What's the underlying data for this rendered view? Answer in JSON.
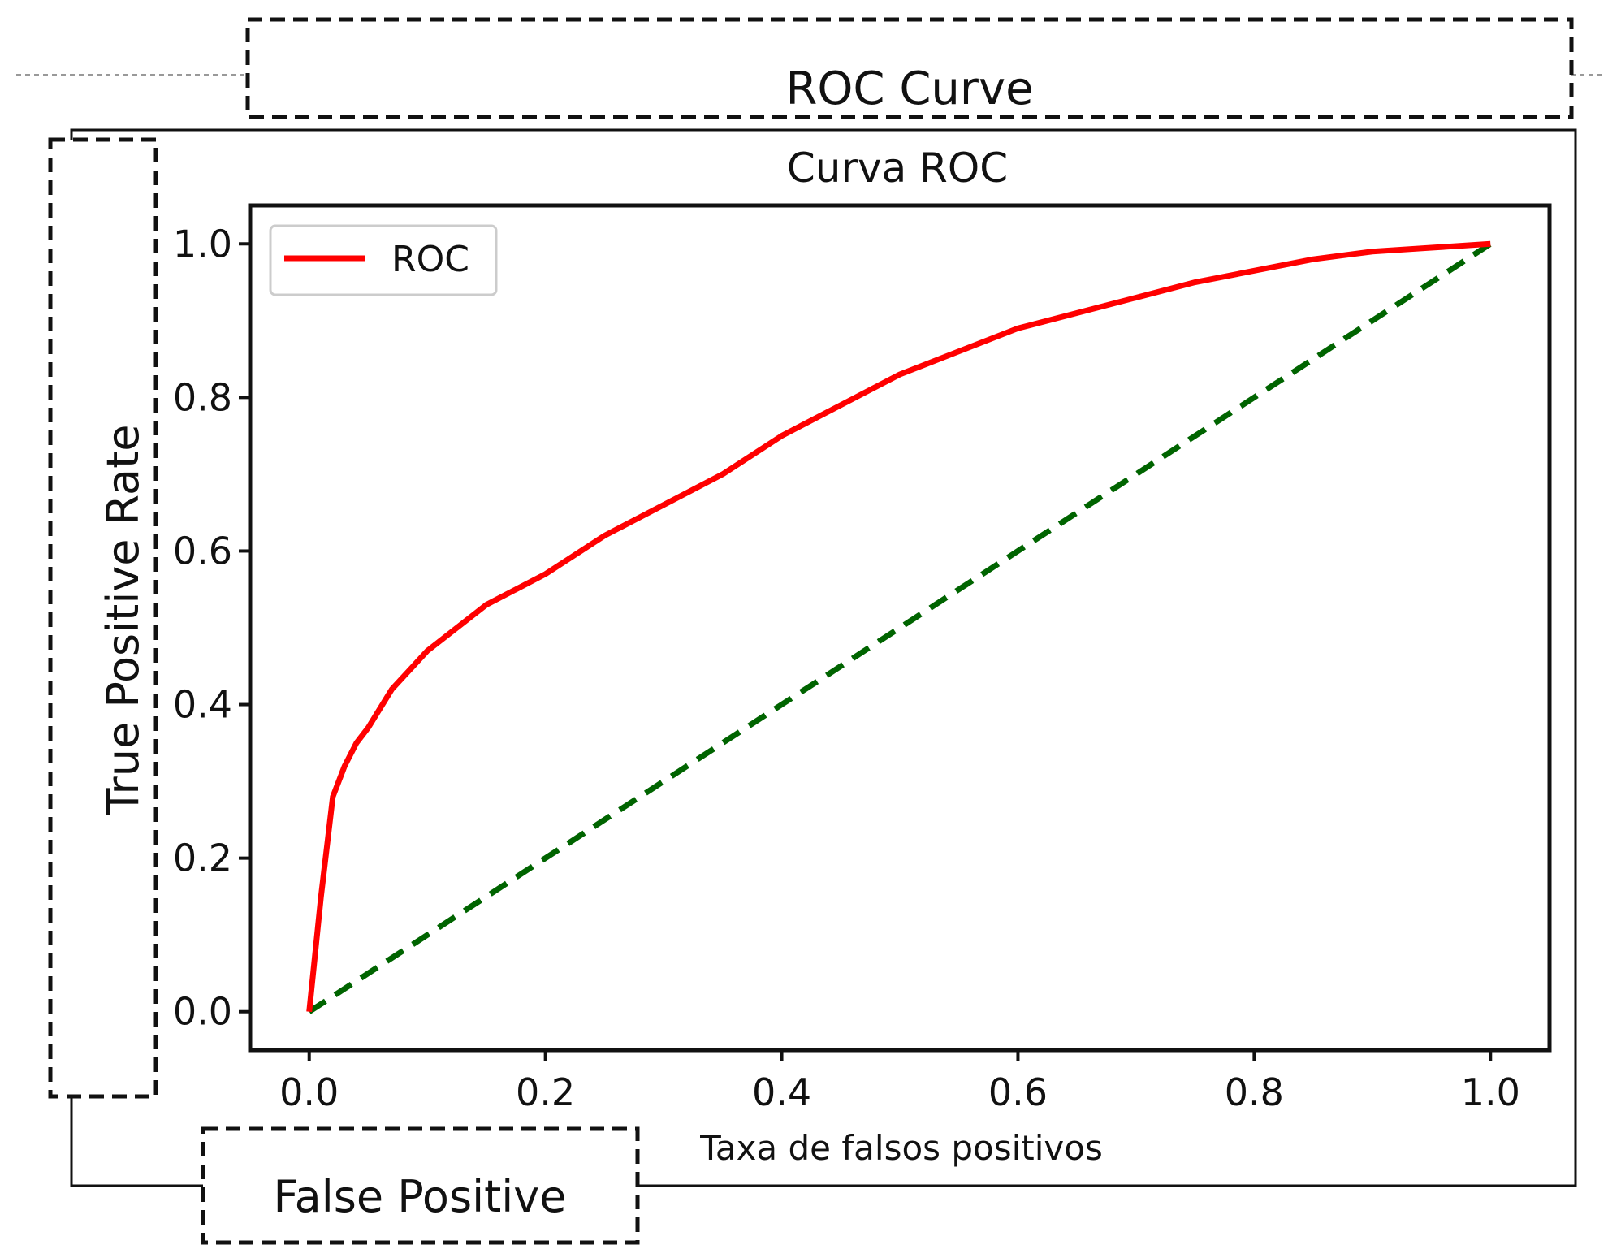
{
  "annotations": {
    "top_label": "ROC Curve",
    "left_label": "True Positive Rate",
    "bottom_label": "False Positive"
  },
  "chart_data": {
    "type": "line",
    "title": "Curva ROC",
    "xlabel": "Taxa de falsos positivos",
    "ylabel": "",
    "xlim": [
      -0.05,
      1.05
    ],
    "ylim": [
      -0.05,
      1.05
    ],
    "xticks": [
      0.0,
      0.2,
      0.4,
      0.6,
      0.8,
      1.0
    ],
    "yticks": [
      0.0,
      0.2,
      0.4,
      0.6,
      0.8,
      1.0
    ],
    "xtick_labels": [
      "0.0",
      "0.2",
      "0.4",
      "0.6",
      "0.8",
      "1.0"
    ],
    "ytick_labels": [
      "0.0",
      "0.2",
      "0.4",
      "0.6",
      "0.8",
      "1.0"
    ],
    "grid": false,
    "legend_position": "top-left",
    "series": [
      {
        "name": "ROC",
        "color": "#ff0000",
        "style": "solid",
        "x": [
          0.0,
          0.01,
          0.02,
          0.03,
          0.04,
          0.05,
          0.07,
          0.1,
          0.15,
          0.2,
          0.25,
          0.3,
          0.35,
          0.4,
          0.45,
          0.5,
          0.55,
          0.6,
          0.65,
          0.7,
          0.75,
          0.8,
          0.85,
          0.9,
          0.95,
          1.0
        ],
        "y": [
          0.0,
          0.15,
          0.28,
          0.32,
          0.35,
          0.37,
          0.42,
          0.47,
          0.53,
          0.57,
          0.62,
          0.66,
          0.7,
          0.75,
          0.79,
          0.83,
          0.86,
          0.89,
          0.91,
          0.93,
          0.95,
          0.965,
          0.98,
          0.99,
          0.995,
          1.0
        ]
      },
      {
        "color": "#006400",
        "style": "dashed",
        "x": [
          0.0,
          1.0
        ],
        "y": [
          0.0,
          1.0
        ]
      }
    ]
  }
}
